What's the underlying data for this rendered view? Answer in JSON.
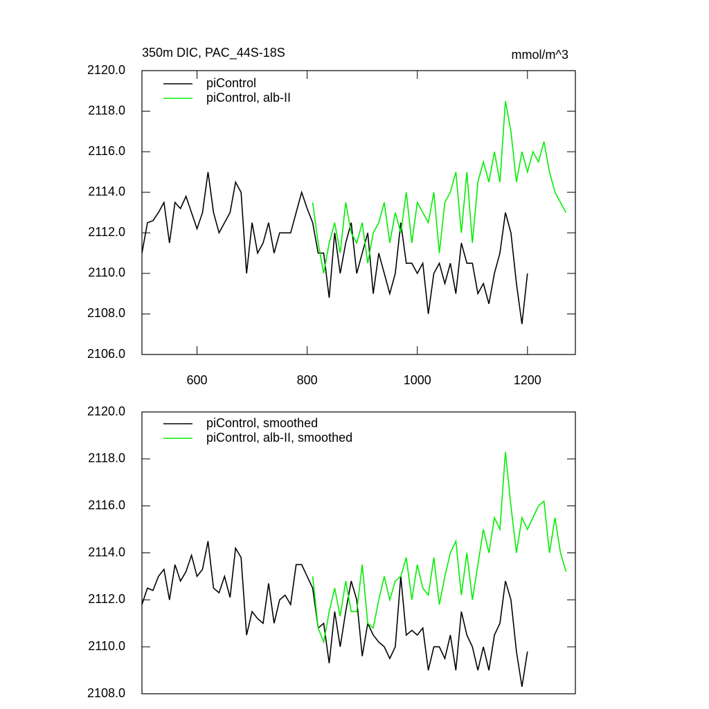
{
  "chart_data": [
    {
      "type": "line",
      "title": "350m DIC, PAC_44S-18S",
      "subtitle": "mmol/m^3",
      "xlim": [
        500,
        1287
      ],
      "xticks": [
        600,
        800,
        1000,
        1200
      ],
      "ylim": [
        2106,
        2120
      ],
      "yticks": [
        {
          "value": 2106,
          "label": "2106.0"
        },
        {
          "value": 2108,
          "label": "2108.0"
        },
        {
          "value": 2110,
          "label": "2110.0"
        },
        {
          "value": 2112,
          "label": "2112.0"
        },
        {
          "value": 2114,
          "label": "2114.0"
        },
        {
          "value": 2116,
          "label": "2116.0"
        },
        {
          "value": 2118,
          "label": "2118.0"
        },
        {
          "value": 2120,
          "label": "2120.0"
        }
      ],
      "series": [
        {
          "name": "piControl",
          "color": "#000000",
          "x": [
            500,
            510,
            520,
            530,
            540,
            550,
            560,
            570,
            580,
            590,
            600,
            610,
            620,
            630,
            640,
            650,
            660,
            670,
            680,
            690,
            700,
            710,
            720,
            730,
            740,
            750,
            760,
            770,
            780,
            790,
            800,
            810,
            820,
            830,
            840,
            850,
            860,
            870,
            880,
            890,
            900,
            910,
            920,
            930,
            940,
            950,
            960,
            970,
            980,
            990,
            1000,
            1010,
            1020,
            1030,
            1040,
            1050,
            1060,
            1070,
            1080,
            1090,
            1100,
            1110,
            1120,
            1130,
            1140,
            1150,
            1160,
            1170,
            1180,
            1190,
            1200
          ],
          "values": [
            2111.0,
            2112.5,
            2112.6,
            2113.0,
            2113.5,
            2111.5,
            2113.5,
            2113.2,
            2113.8,
            2113.0,
            2112.2,
            2113.0,
            2115.0,
            2113.0,
            2112.0,
            2112.5,
            2113.0,
            2114.5,
            2114.0,
            2110.0,
            2112.5,
            2111.0,
            2111.5,
            2112.5,
            2111.0,
            2112.0,
            2112.0,
            2112.0,
            2113.0,
            2114.0,
            2113.2,
            2112.5,
            2111.0,
            2111.0,
            2108.8,
            2112.0,
            2110.0,
            2111.5,
            2112.5,
            2110.0,
            2111.0,
            2112.0,
            2109.0,
            2111.0,
            2110.0,
            2109.0,
            2110.0,
            2112.5,
            2110.5,
            2110.5,
            2110.0,
            2110.5,
            2108.0,
            2110.0,
            2110.5,
            2109.5,
            2110.5,
            2109.0,
            2111.5,
            2110.5,
            2110.5,
            2109.0,
            2109.5,
            2108.5,
            2110.0,
            2111.0,
            2113.0,
            2112.0,
            2109.5,
            2107.5,
            2110.0
          ]
        },
        {
          "name": "piControl, alb-II",
          "color": "#00ee00",
          "x": [
            810,
            820,
            830,
            840,
            850,
            860,
            870,
            880,
            890,
            900,
            910,
            920,
            930,
            940,
            950,
            960,
            970,
            980,
            990,
            1000,
            1010,
            1020,
            1030,
            1040,
            1050,
            1060,
            1070,
            1080,
            1090,
            1100,
            1110,
            1120,
            1130,
            1140,
            1150,
            1160,
            1170,
            1180,
            1190,
            1200,
            1210,
            1220,
            1230,
            1240,
            1250,
            1260,
            1270
          ],
          "values": [
            2113.5,
            2111.5,
            2110.0,
            2111.5,
            2112.5,
            2111.0,
            2113.5,
            2112.0,
            2111.5,
            2112.5,
            2110.5,
            2112.0,
            2112.5,
            2113.5,
            2111.5,
            2113.0,
            2112.0,
            2114.0,
            2111.5,
            2113.5,
            2113.0,
            2112.5,
            2114.0,
            2111.0,
            2113.5,
            2114.0,
            2115.0,
            2112.0,
            2115.0,
            2111.5,
            2114.5,
            2115.5,
            2114.5,
            2116.0,
            2114.5,
            2118.5,
            2117.0,
            2114.5,
            2116.0,
            2115.0,
            2116.0,
            2115.5,
            2116.5,
            2115.0,
            2114.0,
            2113.5,
            2113.0
          ]
        }
      ]
    },
    {
      "type": "line",
      "xlim": [
        500,
        1287
      ],
      "ylim": [
        2108,
        2120
      ],
      "yticks": [
        {
          "value": 2108,
          "label": "2108.0"
        },
        {
          "value": 2110,
          "label": "2110.0"
        },
        {
          "value": 2112,
          "label": "2112.0"
        },
        {
          "value": 2114,
          "label": "2114.0"
        },
        {
          "value": 2116,
          "label": "2116.0"
        },
        {
          "value": 2118,
          "label": "2118.0"
        },
        {
          "value": 2120,
          "label": "2120.0"
        }
      ],
      "series": [
        {
          "name": "piControl, smoothed",
          "color": "#000000",
          "x": [
            500,
            510,
            520,
            530,
            540,
            550,
            560,
            570,
            580,
            590,
            600,
            610,
            620,
            630,
            640,
            650,
            660,
            670,
            680,
            690,
            700,
            710,
            720,
            730,
            740,
            750,
            760,
            770,
            780,
            790,
            800,
            810,
            820,
            830,
            840,
            850,
            860,
            870,
            880,
            890,
            900,
            910,
            920,
            930,
            940,
            950,
            960,
            970,
            980,
            990,
            1000,
            1010,
            1020,
            1030,
            1040,
            1050,
            1060,
            1070,
            1080,
            1090,
            1100,
            1110,
            1120,
            1130,
            1140,
            1150,
            1160,
            1170,
            1180,
            1190,
            1200
          ],
          "values": [
            2111.8,
            2112.5,
            2112.4,
            2113.0,
            2113.3,
            2112.0,
            2113.5,
            2112.8,
            2113.2,
            2113.9,
            2113.0,
            2113.3,
            2114.5,
            2112.5,
            2112.3,
            2113.0,
            2112.1,
            2114.2,
            2113.8,
            2110.5,
            2111.5,
            2111.2,
            2111.0,
            2112.7,
            2111.0,
            2112.0,
            2112.2,
            2111.8,
            2113.5,
            2113.5,
            2113.0,
            2112.5,
            2110.8,
            2111.0,
            2109.3,
            2111.5,
            2110.0,
            2111.5,
            2112.8,
            2112.0,
            2109.6,
            2111.0,
            2110.5,
            2110.2,
            2110.0,
            2109.5,
            2110.0,
            2113.0,
            2110.5,
            2110.7,
            2110.5,
            2110.8,
            2109.0,
            2110.0,
            2110.0,
            2109.5,
            2110.5,
            2109.0,
            2111.5,
            2110.5,
            2110.0,
            2109.0,
            2110.0,
            2109.0,
            2110.5,
            2111.0,
            2112.8,
            2112.0,
            2109.8,
            2108.3,
            2109.8
          ]
        },
        {
          "name": "piControl, alb-II, smoothed",
          "color": "#00ee00",
          "x": [
            810,
            820,
            830,
            840,
            850,
            860,
            870,
            880,
            890,
            900,
            910,
            920,
            930,
            940,
            950,
            960,
            970,
            980,
            990,
            1000,
            1010,
            1020,
            1030,
            1040,
            1050,
            1060,
            1070,
            1080,
            1090,
            1100,
            1110,
            1120,
            1130,
            1140,
            1150,
            1160,
            1170,
            1180,
            1190,
            1200,
            1210,
            1220,
            1230,
            1240,
            1250,
            1260,
            1270
          ],
          "values": [
            2113.0,
            2110.8,
            2110.2,
            2111.5,
            2112.5,
            2111.3,
            2112.8,
            2111.5,
            2111.5,
            2113.5,
            2111.0,
            2110.8,
            2112.0,
            2113.0,
            2112.0,
            2112.8,
            2113.0,
            2113.8,
            2112.0,
            2113.5,
            2112.5,
            2112.2,
            2113.8,
            2111.8,
            2113.0,
            2114.0,
            2114.5,
            2112.2,
            2114.0,
            2112.0,
            2113.5,
            2115.0,
            2114.0,
            2115.5,
            2115.0,
            2118.3,
            2116.0,
            2114.0,
            2115.5,
            2115.0,
            2115.5,
            2116.0,
            2116.2,
            2114.0,
            2115.5,
            2114.0,
            2113.2
          ]
        }
      ]
    }
  ]
}
